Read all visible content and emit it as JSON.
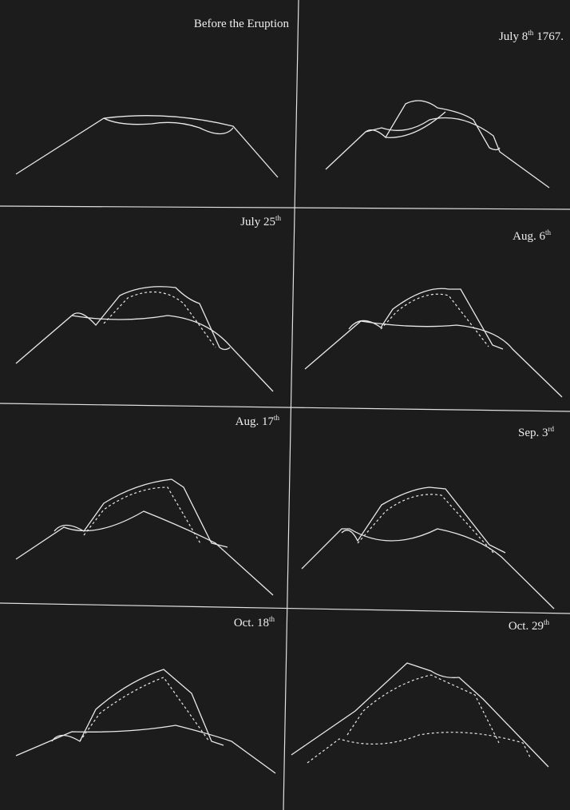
{
  "panels": [
    {
      "label": "Before the Eruption"
    },
    {
      "label": "July 8",
      "sup": "th",
      "suffix": "1767."
    },
    {
      "label": "July 25",
      "sup": "th"
    },
    {
      "label": "Aug. 6",
      "sup": "th"
    },
    {
      "label": "Aug. 17",
      "sup": "th"
    },
    {
      "label": "Sep. 3",
      "sup": "rd"
    },
    {
      "label": "Oct. 18",
      "sup": "th"
    },
    {
      "label": "Oct. 29",
      "sup": "th"
    }
  ]
}
